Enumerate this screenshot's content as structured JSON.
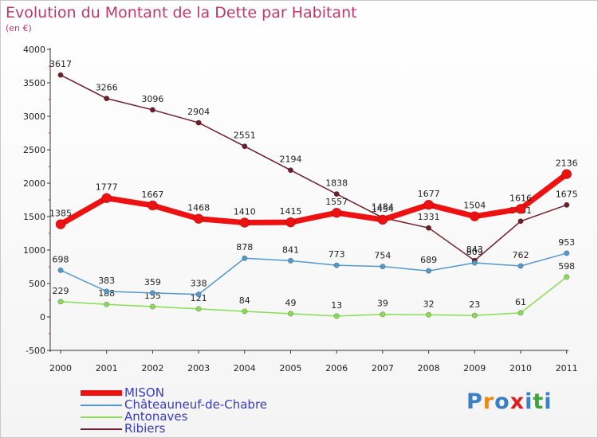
{
  "chart_data": {
    "type": "line",
    "title": "Evolution du Montant de la Dette par Habitant",
    "subtitle": "(en €)",
    "categories": [
      "2000",
      "2001",
      "2002",
      "2003",
      "2004",
      "2005",
      "2006",
      "2007",
      "2008",
      "2009",
      "2010",
      "2011"
    ],
    "ylim": [
      -500,
      4000
    ],
    "yticks": [
      "-500",
      "0",
      "500",
      "1000",
      "1500",
      "2000",
      "2500",
      "3000",
      "3500",
      "4000"
    ],
    "legend_position": "bottom-left",
    "series": [
      {
        "name": "Ribiers",
        "color": "#6e1e2a",
        "values": [
          3617,
          3266,
          3096,
          2904,
          2551,
          2194,
          1838,
          1484,
          1331,
          843,
          1431,
          1675
        ],
        "labels": [
          "3617",
          "3266",
          "3096",
          "2904",
          "2551",
          "2194",
          "1838",
          "1484",
          "1331",
          "843",
          "1431",
          "1675"
        ]
      },
      {
        "name": "Antonaves",
        "color": "#88dd55",
        "values": [
          229,
          188,
          155,
          121,
          84,
          49,
          13,
          39,
          32,
          23,
          61,
          598
        ],
        "labels": [
          "229",
          "188",
          "155",
          "121",
          "84",
          "49",
          "13",
          "39",
          "32",
          "23",
          "61",
          "598"
        ]
      },
      {
        "name": "Châteauneuf-de-Chabre",
        "color": "#5599cc",
        "values": [
          698,
          383,
          359,
          338,
          878,
          841,
          773,
          754,
          689,
          809,
          762,
          953
        ],
        "labels": [
          "698",
          "383",
          "359",
          "338",
          "878",
          "841",
          "773",
          "754",
          "689",
          "809",
          "762",
          "953"
        ]
      },
      {
        "name": "MISON",
        "color": "#ee1111",
        "values": [
          1385,
          1777,
          1667,
          1468,
          1410,
          1415,
          1557,
          1454,
          1677,
          1504,
          1616,
          2136
        ],
        "labels": [
          "1385",
          "1777",
          "1667",
          "1468",
          "1410",
          "1415",
          "1557",
          "1454",
          "1677",
          "1504",
          "1616",
          "2136"
        ]
      }
    ],
    "legend": [
      "MISON",
      "Châteauneuf-de-Chabre",
      "Antonaves",
      "Ribiers"
    ]
  },
  "logo": {
    "text": "Proxiti",
    "colors": [
      "#3b7fc4",
      "#e68a1e",
      "#3b7fc4",
      "#e02020",
      "#3b7fc4",
      "#3aa63a",
      "#3b7fc4"
    ]
  }
}
